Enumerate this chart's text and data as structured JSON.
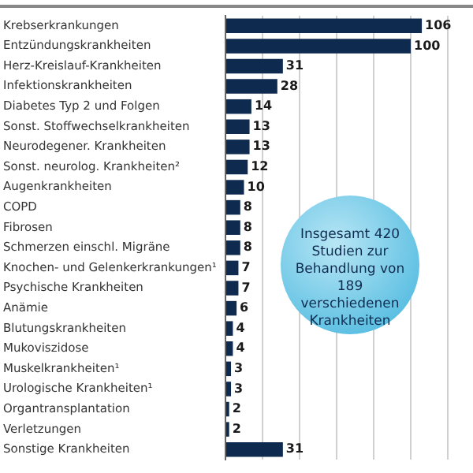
{
  "chart_data": {
    "type": "bar",
    "orientation": "horizontal",
    "categories": [
      "Krebserkrankungen",
      "Entzündungskrankheiten",
      "Herz-Kreislauf-Krankheiten",
      "Infektionskrankheiten",
      "Diabetes Typ 2 und Folgen",
      "Sonst. Stoffwechselkrankheiten",
      "Neurodegener. Krankheiten",
      "Sonst. neurolog. Krankheiten²",
      "Augenkrankheiten",
      "COPD",
      "Fibrosen",
      "Schmerzen einschl. Migräne",
      "Knochen- und Gelenkerkrankungen¹",
      "Psychische Krankheiten",
      "Anämie",
      "Blutungskrankheiten",
      "Mukoviszidose",
      "Muskelkrankheiten¹",
      "Urologische Krankheiten¹",
      "Organtransplantation",
      "Verletzungen",
      "Sonstige Krankheiten"
    ],
    "values": [
      106,
      100,
      31,
      28,
      14,
      13,
      13,
      12,
      10,
      8,
      8,
      8,
      7,
      7,
      6,
      4,
      4,
      3,
      3,
      2,
      2,
      31
    ],
    "color": "#0e2b4f",
    "xlim": [
      0,
      120
    ],
    "xticks": [
      {
        "value": 0,
        "label": null
      },
      {
        "value": 20,
        "label": null
      },
      {
        "value": 40,
        "label": null
      },
      {
        "value": 60,
        "label": null
      },
      {
        "value": 80,
        "label": null
      },
      {
        "value": 100,
        "label": null
      },
      {
        "value": 120,
        "label": null
      }
    ],
    "tick_labels": "y",
    "grid": "x",
    "data_labels": true,
    "legend": false,
    "annotations": [
      "Insgesamt 420 Studien zur Behandlung von 189 verschiedenen Krankheiten"
    ]
  }
}
